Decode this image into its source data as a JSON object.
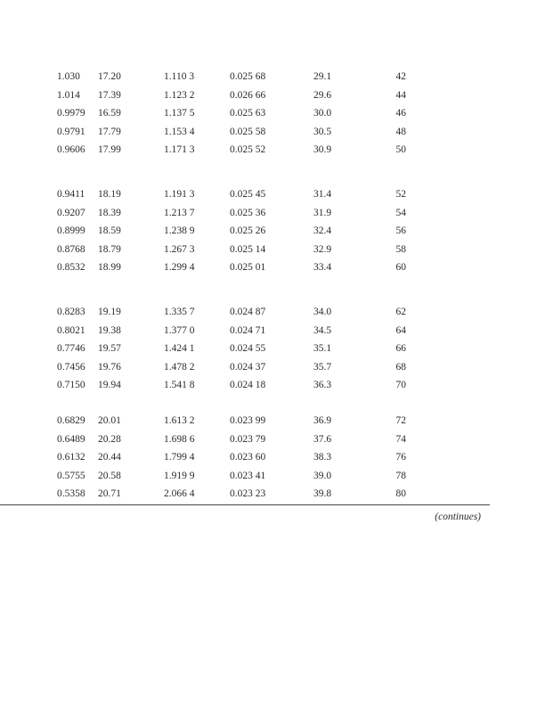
{
  "table": {
    "groups": [
      [
        [
          "1.030",
          "17.20",
          "1.110 3",
          "0.025 68",
          "29.1",
          "42"
        ],
        [
          "1.014",
          "17.39",
          "1.123 2",
          "0.026 66",
          "29.6",
          "44"
        ],
        [
          "0.9979",
          "16.59",
          "1.137 5",
          "0.025 63",
          "30.0",
          "46"
        ],
        [
          "0.9791",
          "17.79",
          "1.153 4",
          "0.025 58",
          "30.5",
          "48"
        ],
        [
          "0.9606",
          "17.99",
          "1.171 3",
          "0.025 52",
          "30.9",
          "50"
        ]
      ],
      [
        [
          "0.9411",
          "18.19",
          "1.191 3",
          "0.025 45",
          "31.4",
          "52"
        ],
        [
          "0.9207",
          "18.39",
          "1.213 7",
          "0.025 36",
          "31.9",
          "54"
        ],
        [
          "0.8999",
          "18.59",
          "1.238 9",
          "0.025 26",
          "32.4",
          "56"
        ],
        [
          "0.8768",
          "18.79",
          "1.267 3",
          "0.025 14",
          "32.9",
          "58"
        ],
        [
          "0.8532",
          "18.99",
          "1.299 4",
          "0.025 01",
          "33.4",
          "60"
        ]
      ],
      [
        [
          "0.8283",
          "19.19",
          "1.335 7",
          "0.024 87",
          "34.0",
          "62"
        ],
        [
          "0.8021",
          "19.38",
          "1.377 0",
          "0.024 71",
          "34.5",
          "64"
        ],
        [
          "0.7746",
          "19.57",
          "1.424 1",
          "0.024 55",
          "35.1",
          "66"
        ],
        [
          "0.7456",
          "19.76",
          "1.478 2",
          "0.024 37",
          "35.7",
          "68"
        ],
        [
          "0.7150",
          "19.94",
          "1.541 8",
          "0.024 18",
          "36.3",
          "70"
        ]
      ],
      [
        [
          "0.6829",
          "20.01",
          "1.613 2",
          "0.023 99",
          "36.9",
          "72"
        ],
        [
          "0.6489",
          "20.28",
          "1.698 6",
          "0.023 79",
          "37.6",
          "74"
        ],
        [
          "0.6132",
          "20.44",
          "1.799 4",
          "0.023 60",
          "38.3",
          "76"
        ],
        [
          "0.5755",
          "20.58",
          "1.919 9",
          "0.023 41",
          "39.0",
          "78"
        ],
        [
          "0.5358",
          "20.71",
          "2.066 4",
          "0.023 23",
          "39.8",
          "80"
        ]
      ]
    ]
  },
  "footer": {
    "continues": "(continues)"
  }
}
